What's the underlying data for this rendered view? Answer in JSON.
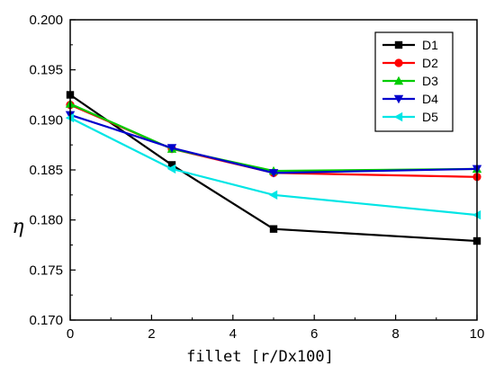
{
  "chart_data": {
    "type": "line",
    "title": "",
    "xlabel": "fillet  [r/Dx100]",
    "ylabel": "η",
    "xlim": [
      0,
      10
    ],
    "ylim": [
      0.17,
      0.2
    ],
    "x_ticks": [
      "0",
      "2",
      "4",
      "6",
      "8",
      "10"
    ],
    "y_ticks": [
      "0.170",
      "0.175",
      "0.180",
      "0.185",
      "0.190",
      "0.195",
      "0.200"
    ],
    "legend_position": "top-right",
    "x": [
      0,
      2.5,
      5,
      10
    ],
    "series": [
      {
        "name": "D1",
        "color": "#000000",
        "marker": "square",
        "values": [
          0.1925,
          0.1855,
          0.1791,
          0.1779
        ]
      },
      {
        "name": "D2",
        "color": "#ff0000",
        "marker": "circle",
        "values": [
          0.1915,
          0.1871,
          0.1847,
          0.1843
        ]
      },
      {
        "name": "D3",
        "color": "#00cc00",
        "marker": "triangle-up",
        "values": [
          0.1916,
          0.1871,
          0.1849,
          0.1851
        ]
      },
      {
        "name": "D4",
        "color": "#0000cc",
        "marker": "triangle-down",
        "values": [
          0.1905,
          0.1872,
          0.1847,
          0.1851
        ]
      },
      {
        "name": "D5",
        "color": "#00e5e5",
        "marker": "triangle-left",
        "values": [
          0.1902,
          0.1851,
          0.1825,
          0.1805
        ]
      }
    ]
  }
}
